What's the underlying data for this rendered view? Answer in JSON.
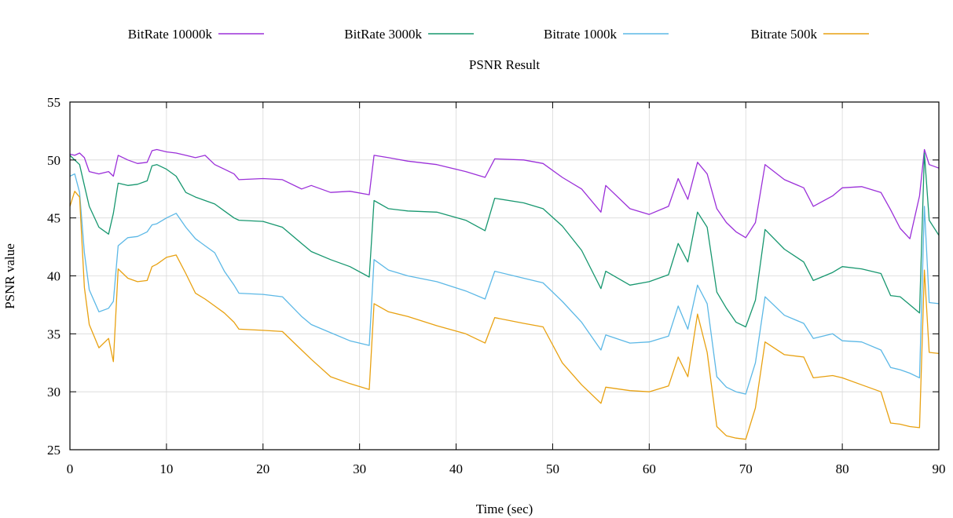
{
  "chart_data": {
    "type": "line",
    "title": "PSNR Result",
    "xlabel": "Time (sec)",
    "ylabel": "PSNR value",
    "xlim": [
      0,
      90
    ],
    "ylim": [
      25,
      55
    ],
    "xticks": [
      0,
      10,
      20,
      30,
      40,
      50,
      60,
      70,
      80,
      90
    ],
    "yticks": [
      25,
      30,
      35,
      40,
      45,
      50,
      55
    ],
    "grid": true,
    "legend_position": "top",
    "series": [
      {
        "name": "BitRate 10000k",
        "color": "#9b30d9",
        "x": [
          0,
          0.5,
          1,
          1.5,
          2,
          3,
          4,
          4.5,
          5,
          6,
          7,
          8,
          8.5,
          9,
          10,
          11,
          12,
          13,
          14,
          15,
          16,
          17,
          17.5,
          20,
          22,
          24,
          25,
          27,
          29,
          31,
          31.5,
          33,
          35,
          38,
          41,
          43,
          44,
          47,
          49,
          51,
          53,
          55,
          55.5,
          58,
          60,
          62,
          63,
          64,
          65,
          66,
          67,
          68,
          69,
          70,
          71,
          72,
          74,
          76,
          77,
          79,
          80,
          82,
          84,
          85,
          86,
          87,
          88,
          88.5,
          89,
          90
        ],
        "values": [
          50.5,
          50.4,
          50.6,
          50.2,
          49.0,
          48.8,
          49.0,
          48.6,
          50.4,
          50.0,
          49.7,
          49.8,
          50.8,
          50.9,
          50.7,
          50.6,
          50.4,
          50.2,
          50.4,
          49.6,
          49.2,
          48.8,
          48.3,
          48.4,
          48.3,
          47.5,
          47.8,
          47.2,
          47.3,
          47.0,
          50.4,
          50.2,
          49.9,
          49.6,
          49.0,
          48.5,
          50.1,
          50.0,
          49.7,
          48.5,
          47.5,
          45.5,
          47.8,
          45.8,
          45.3,
          46.0,
          48.4,
          46.6,
          49.8,
          48.8,
          45.8,
          44.6,
          43.8,
          43.3,
          44.6,
          49.6,
          48.3,
          47.6,
          46.0,
          46.9,
          47.6,
          47.7,
          47.2,
          45.7,
          44.1,
          43.2,
          46.9,
          50.9,
          49.6,
          49.3
        ]
      },
      {
        "name": "BitRate 3000k",
        "color": "#17976f",
        "x": [
          0,
          0.5,
          1,
          1.5,
          2,
          3,
          4,
          4.5,
          5,
          6,
          7,
          8,
          8.5,
          9,
          10,
          11,
          12,
          13,
          14,
          15,
          16,
          17,
          17.5,
          20,
          22,
          24,
          25,
          27,
          29,
          31,
          31.5,
          33,
          35,
          38,
          41,
          43,
          44,
          47,
          49,
          51,
          53,
          55,
          55.5,
          58,
          60,
          62,
          63,
          64,
          65,
          66,
          67,
          68,
          69,
          70,
          71,
          72,
          74,
          76,
          77,
          79,
          80,
          82,
          84,
          85,
          86,
          87,
          88,
          88.5,
          89,
          90
        ],
        "values": [
          50.4,
          50.0,
          49.6,
          47.8,
          46.0,
          44.2,
          43.6,
          45.4,
          48.0,
          47.8,
          47.9,
          48.2,
          49.5,
          49.6,
          49.2,
          48.6,
          47.2,
          46.8,
          46.5,
          46.2,
          45.6,
          45.0,
          44.8,
          44.7,
          44.2,
          42.8,
          42.1,
          41.4,
          40.8,
          39.9,
          46.5,
          45.8,
          45.6,
          45.5,
          44.8,
          43.9,
          46.7,
          46.3,
          45.8,
          44.3,
          42.2,
          38.9,
          40.4,
          39.2,
          39.5,
          40.1,
          42.8,
          41.2,
          45.5,
          44.2,
          38.6,
          37.2,
          36.0,
          35.6,
          37.9,
          44.0,
          42.3,
          41.2,
          39.6,
          40.3,
          40.8,
          40.6,
          40.2,
          38.3,
          38.2,
          37.5,
          36.8,
          50.6,
          44.8,
          43.5
        ]
      },
      {
        "name": "Bitrate 1000k",
        "color": "#5cb8e6",
        "x": [
          0,
          0.5,
          1,
          1.5,
          2,
          3,
          4,
          4.5,
          5,
          6,
          7,
          8,
          8.5,
          9,
          10,
          11,
          12,
          13,
          14,
          15,
          16,
          17,
          17.5,
          20,
          22,
          24,
          25,
          27,
          29,
          31,
          31.5,
          33,
          35,
          38,
          41,
          43,
          44,
          47,
          49,
          51,
          53,
          55,
          55.5,
          58,
          60,
          62,
          63,
          64,
          65,
          66,
          67,
          68,
          69,
          70,
          71,
          72,
          74,
          76,
          77,
          79,
          80,
          82,
          84,
          85,
          86,
          87,
          88,
          88.5,
          89,
          90
        ],
        "values": [
          48.6,
          48.8,
          47.2,
          42.0,
          38.8,
          36.9,
          37.2,
          37.8,
          42.6,
          43.3,
          43.4,
          43.8,
          44.4,
          44.5,
          45.0,
          45.4,
          44.2,
          43.2,
          42.6,
          42.0,
          40.4,
          39.2,
          38.5,
          38.4,
          38.2,
          36.5,
          35.8,
          35.1,
          34.4,
          34.0,
          41.4,
          40.5,
          40.0,
          39.5,
          38.7,
          38.0,
          40.4,
          39.8,
          39.4,
          37.8,
          36.0,
          33.6,
          34.9,
          34.2,
          34.3,
          34.8,
          37.4,
          35.4,
          39.2,
          37.6,
          31.3,
          30.4,
          30.0,
          29.8,
          32.5,
          38.2,
          36.6,
          35.9,
          34.6,
          35.0,
          34.4,
          34.3,
          33.6,
          32.1,
          31.9,
          31.6,
          31.2,
          46.0,
          37.7,
          37.6
        ]
      },
      {
        "name": "Bitrate 500k",
        "color": "#e8a111",
        "x": [
          0,
          0.5,
          1,
          1.5,
          2,
          3,
          4,
          4.5,
          5,
          6,
          7,
          8,
          8.5,
          9,
          10,
          11,
          12,
          13,
          14,
          15,
          16,
          17,
          17.5,
          20,
          22,
          24,
          25,
          27,
          29,
          31,
          31.5,
          33,
          35,
          38,
          41,
          43,
          44,
          47,
          49,
          51,
          53,
          55,
          55.5,
          58,
          60,
          62,
          63,
          64,
          65,
          66,
          67,
          68,
          69,
          70,
          71,
          72,
          74,
          76,
          77,
          79,
          80,
          82,
          84,
          85,
          86,
          87,
          88,
          88.5,
          89,
          90
        ],
        "values": [
          46.0,
          47.3,
          46.8,
          39.0,
          35.8,
          33.8,
          34.6,
          32.6,
          40.6,
          39.8,
          39.5,
          39.6,
          40.8,
          41.0,
          41.6,
          41.8,
          40.2,
          38.5,
          38.0,
          37.4,
          36.8,
          36.0,
          35.4,
          35.3,
          35.2,
          33.6,
          32.8,
          31.3,
          30.7,
          30.2,
          37.6,
          36.9,
          36.5,
          35.7,
          35.0,
          34.2,
          36.4,
          35.9,
          35.6,
          32.5,
          30.6,
          29.0,
          30.4,
          30.1,
          30.0,
          30.5,
          33.0,
          31.3,
          36.7,
          33.4,
          27.0,
          26.2,
          26.0,
          25.9,
          28.6,
          34.3,
          33.2,
          33.0,
          31.2,
          31.4,
          31.2,
          30.6,
          30.0,
          27.3,
          27.2,
          27.0,
          26.9,
          40.5,
          33.4,
          33.3
        ]
      }
    ]
  }
}
